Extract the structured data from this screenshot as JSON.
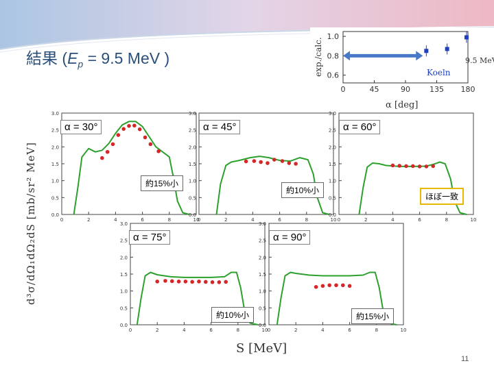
{
  "slide": {
    "title_prefix": "結果 (",
    "title_var": "E",
    "title_sub": "p",
    "title_suffix": " = 9.5 MeV )",
    "page_number": "11",
    "ylabel": "d³σ/dΩ₁dΩ₂dS [mb/sr² MeV]",
    "xlabel": "S [MeV]"
  },
  "inset": {
    "ylabel": "exp./calc.",
    "xlabel": "α [deg]",
    "yticks": [
      "1.0",
      "0.8",
      "0.6"
    ],
    "xticks": [
      "0",
      "45",
      "90",
      "135",
      "180"
    ],
    "label_koeln": "Koeln",
    "label_energy": "9.5 MeV",
    "arrow_range": [
      0,
      115
    ],
    "points": [
      {
        "alpha": 120,
        "ratio": 0.85
      },
      {
        "alpha": 150,
        "ratio": 0.87
      },
      {
        "alpha": 178,
        "ratio": 0.99
      }
    ]
  },
  "panels": [
    {
      "label": "α = 30°",
      "note": "約15%小"
    },
    {
      "label": "α = 45°",
      "note": "約10%小"
    },
    {
      "label": "α = 60°",
      "note": "ほぼ一致"
    },
    {
      "label": "α = 75°",
      "note": "約10%小"
    },
    {
      "label": "α = 90°",
      "note": "約15%小"
    }
  ],
  "colors": {
    "accent": "#2a4f7a",
    "theory": "#2ca02c",
    "data": "#d62728",
    "inset_points": "#1f3fbf",
    "inset_arrow": "#4a78c8",
    "highlight": "#e6b800"
  },
  "chart_data": [
    {
      "type": "line",
      "title": "α = 30°",
      "xlabel": "S [MeV]",
      "ylabel": "d³σ/dΩ₁dΩ₂dS [mb/sr² MeV]",
      "xlim": [
        0,
        10
      ],
      "ylim": [
        0,
        3.0
      ],
      "xticks": [
        0,
        2,
        4,
        6,
        8,
        10
      ],
      "yticks": [
        0,
        0.5,
        1.0,
        1.5,
        2.0,
        2.5,
        3.0
      ],
      "curve": {
        "x": [
          0.9,
          1.2,
          1.5,
          2.0,
          2.5,
          3.0,
          3.5,
          4.0,
          4.5,
          5.0,
          5.5,
          6.0,
          6.5,
          7.0,
          7.5,
          8.0,
          8.3,
          8.6,
          9.0,
          9.5
        ],
        "y": [
          0.0,
          0.8,
          1.7,
          1.95,
          1.85,
          1.9,
          2.1,
          2.4,
          2.65,
          2.75,
          2.75,
          2.6,
          2.3,
          2.0,
          1.85,
          1.7,
          1.1,
          0.4,
          0.05,
          0.0
        ]
      },
      "points": {
        "x": [
          3.0,
          3.4,
          3.8,
          4.2,
          4.6,
          5.0,
          5.4,
          5.8,
          6.2,
          6.6,
          7.2
        ],
        "y": [
          1.67,
          1.85,
          2.08,
          2.35,
          2.53,
          2.62,
          2.63,
          2.52,
          2.28,
          2.08,
          1.87
        ]
      }
    },
    {
      "type": "line",
      "title": "α = 45°",
      "xlabel": "S [MeV]",
      "ylabel": "d³σ/dΩ₁dΩ₂dS [mb/sr² MeV]",
      "xlim": [
        0,
        10
      ],
      "ylim": [
        0,
        3.0
      ],
      "xticks": [
        0,
        2,
        4,
        6,
        8,
        10
      ],
      "yticks": [
        0,
        0.5,
        1.0,
        1.5,
        2.0,
        2.5,
        3.0
      ],
      "curve": {
        "x": [
          1.3,
          1.6,
          2.0,
          2.4,
          3.0,
          3.8,
          4.5,
          5.2,
          6.0,
          6.8,
          7.5,
          8.1,
          8.5,
          8.8,
          9.2,
          9.7
        ],
        "y": [
          0.0,
          0.9,
          1.45,
          1.55,
          1.6,
          1.68,
          1.72,
          1.68,
          1.6,
          1.58,
          1.68,
          1.62,
          1.2,
          0.5,
          0.05,
          0.0
        ]
      },
      "points": {
        "x": [
          3.5,
          4.1,
          4.6,
          5.1,
          5.6,
          6.2,
          6.7,
          7.2
        ],
        "y": [
          1.57,
          1.58,
          1.55,
          1.52,
          1.62,
          1.58,
          1.52,
          1.5
        ]
      }
    },
    {
      "type": "line",
      "title": "α = 60°",
      "xlabel": "S [MeV]",
      "ylabel": "d³σ/dΩ₁dΩ₂dS [mb/sr² MeV]",
      "xlim": [
        0,
        10
      ],
      "ylim": [
        0,
        3.0
      ],
      "xticks": [
        0,
        2,
        4,
        6,
        8,
        10
      ],
      "yticks": [
        0,
        0.5,
        1.0,
        1.5,
        2.0,
        2.5,
        3.0
      ],
      "curve": {
        "x": [
          1.5,
          1.8,
          2.1,
          2.5,
          3.0,
          3.5,
          4.5,
          5.5,
          6.5,
          7.0,
          7.5,
          7.9,
          8.3,
          8.6,
          9.0,
          9.5
        ],
        "y": [
          0.0,
          0.8,
          1.4,
          1.52,
          1.5,
          1.45,
          1.42,
          1.42,
          1.43,
          1.48,
          1.55,
          1.5,
          1.05,
          0.4,
          0.05,
          0.0
        ]
      },
      "points": {
        "x": [
          4.0,
          4.5,
          5.0,
          5.5,
          6.0,
          6.5,
          7.0
        ],
        "y": [
          1.45,
          1.44,
          1.43,
          1.43,
          1.42,
          1.42,
          1.43
        ]
      }
    },
    {
      "type": "line",
      "title": "α = 75°",
      "xlabel": "S [MeV]",
      "ylabel": "d³σ/dΩ₁dΩ₂dS [mb/sr² MeV]",
      "xlim": [
        0,
        10
      ],
      "ylim": [
        0,
        3.0
      ],
      "xticks": [
        0,
        2,
        4,
        6,
        8,
        10
      ],
      "yticks": [
        0,
        0.5,
        1.0,
        1.5,
        2.0,
        2.5,
        3.0
      ],
      "curve": {
        "x": [
          0.5,
          0.8,
          1.1,
          1.5,
          2.0,
          3.0,
          4.0,
          5.0,
          6.0,
          7.0,
          7.5,
          7.9,
          8.2,
          8.5,
          8.9,
          9.5
        ],
        "y": [
          0.0,
          0.8,
          1.45,
          1.55,
          1.48,
          1.42,
          1.4,
          1.4,
          1.4,
          1.42,
          1.55,
          1.55,
          1.1,
          0.4,
          0.05,
          0.0
        ]
      },
      "points": {
        "x": [
          2.0,
          2.6,
          3.1,
          3.6,
          4.1,
          4.6,
          5.1,
          5.6,
          6.1,
          6.6,
          7.1
        ],
        "y": [
          1.28,
          1.3,
          1.29,
          1.28,
          1.28,
          1.27,
          1.28,
          1.27,
          1.26,
          1.26,
          1.27
        ]
      }
    },
    {
      "type": "line",
      "title": "α = 90°",
      "xlabel": "S [MeV]",
      "ylabel": "d³σ/dΩ₁dΩ₂dS [mb/sr² MeV]",
      "xlim": [
        0,
        10
      ],
      "ylim": [
        0,
        3.0
      ],
      "xticks": [
        0,
        2,
        4,
        6,
        8,
        10
      ],
      "yticks": [
        0,
        0.5,
        1.0,
        1.5,
        2.0,
        2.5,
        3.0
      ],
      "curve": {
        "x": [
          0.6,
          0.9,
          1.2,
          1.6,
          2.0,
          3.0,
          4.0,
          5.0,
          6.0,
          7.0,
          7.5,
          7.9,
          8.2,
          8.5,
          8.9,
          9.5
        ],
        "y": [
          0.0,
          0.8,
          1.45,
          1.55,
          1.52,
          1.47,
          1.45,
          1.45,
          1.45,
          1.47,
          1.55,
          1.55,
          1.1,
          0.4,
          0.05,
          0.0
        ]
      },
      "points": {
        "x": [
          3.5,
          4.0,
          4.5,
          5.0,
          5.5,
          6.0
        ],
        "y": [
          1.12,
          1.15,
          1.17,
          1.17,
          1.17,
          1.15
        ]
      }
    }
  ]
}
